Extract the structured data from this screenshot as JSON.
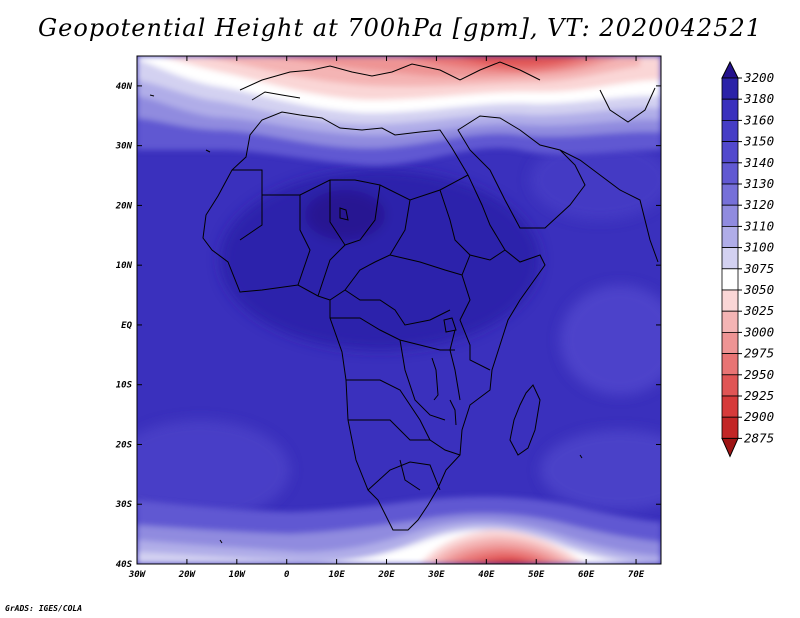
{
  "map": {
    "title": "Geopotential Height at 700hPa [gpm], VT: 2020042521",
    "credit": "GrADS: IGES/COLA",
    "projection": "latlon",
    "region": "Africa",
    "lon_range": [
      -30,
      75
    ],
    "lat_range": [
      -40,
      45
    ],
    "lat_ticks": [
      "40N",
      "30N",
      "20N",
      "10N",
      "EQ",
      "10S",
      "20S",
      "30S",
      "40S"
    ],
    "lat_tick_values": [
      40,
      30,
      20,
      10,
      0,
      -10,
      -20,
      -30,
      -40
    ],
    "lon_ticks": [
      "30W",
      "20W",
      "10W",
      "0",
      "10E",
      "20E",
      "30E",
      "40E",
      "50E",
      "60E",
      "70E"
    ],
    "lon_tick_values": [
      -30,
      -20,
      -10,
      0,
      10,
      20,
      30,
      40,
      50,
      60,
      70
    ]
  },
  "colorbar": {
    "levels": [
      "3200",
      "3180",
      "3160",
      "3150",
      "3140",
      "3130",
      "3120",
      "3110",
      "3100",
      "3075",
      "3050",
      "3025",
      "3000",
      "2975",
      "2950",
      "2925",
      "2900",
      "2875"
    ],
    "colors": [
      "#24128c",
      "#2b22a8",
      "#3a30bd",
      "#463dc6",
      "#5249cd",
      "#6159d2",
      "#7670d8",
      "#908bdf",
      "#b0ade8",
      "#d3d1f1",
      "#ffffff",
      "#fad6d6",
      "#f4b4b4",
      "#ee9494",
      "#e87474",
      "#e05555",
      "#d63a3a",
      "#c22626",
      "#9e1414"
    ]
  },
  "colors": {
    "background": "#3f37c4",
    "coast": "#000000"
  }
}
